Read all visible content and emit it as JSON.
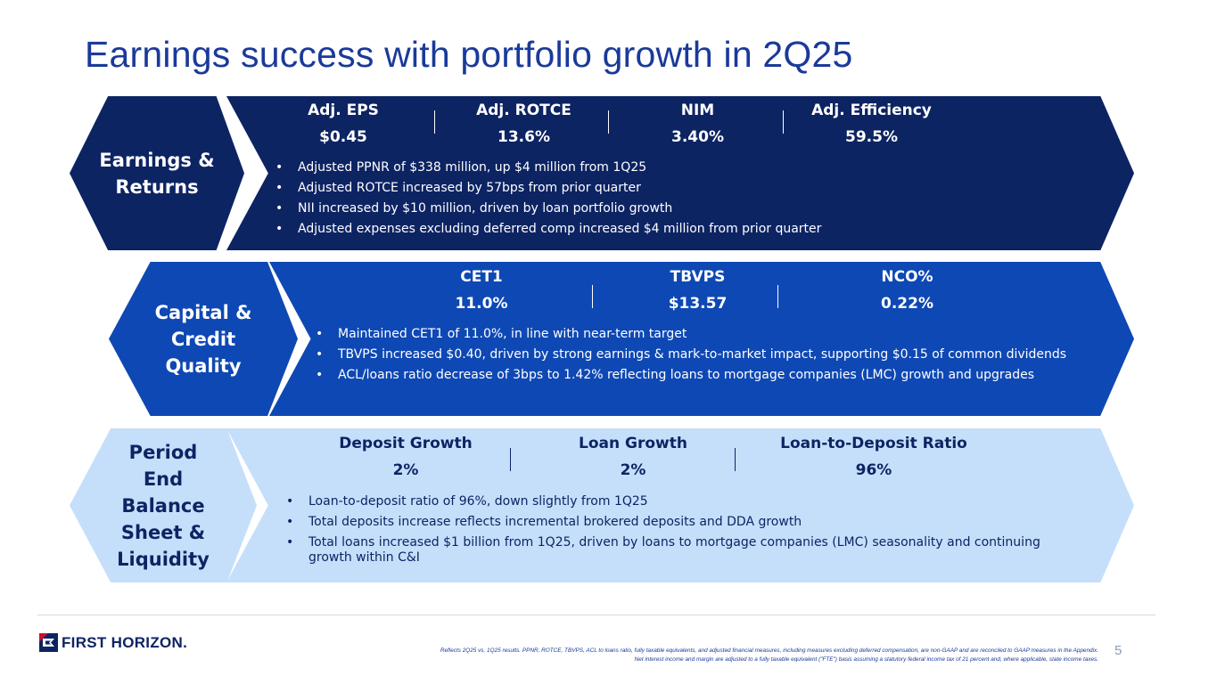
{
  "title": "Earnings success with portfolio growth in 2Q25",
  "row1": {
    "section": "Earnings & Returns",
    "metrics": [
      {
        "label": "Adj. EPS",
        "value": "$0.45"
      },
      {
        "label": "Adj. ROTCE",
        "value": "13.6%"
      },
      {
        "label": "NIM",
        "value": "3.40%"
      },
      {
        "label": "Adj. Efficiency",
        "value": "59.5%"
      }
    ],
    "bullets": [
      "Adjusted PPNR of $338 million, up $4 million from 1Q25",
      "Adjusted ROTCE increased by 57bps from prior quarter",
      "NII increased by $10 million, driven by loan portfolio growth",
      "Adjusted expenses excluding deferred comp increased $4 million from prior quarter"
    ]
  },
  "row2": {
    "section": "Capital & Credit Quality",
    "metrics": [
      {
        "label": "CET1",
        "value": "11.0%"
      },
      {
        "label": "TBVPS",
        "value": "$13.57"
      },
      {
        "label": "NCO%",
        "value": "0.22%"
      }
    ],
    "bullets": [
      "Maintained CET1 of 11.0%, in line with near-term target",
      "TBVPS increased $0.40, driven by strong earnings & mark-to-market impact, supporting $0.15 of common dividends",
      "ACL/loans ratio decrease of 3bps to 1.42% reflecting loans to mortgage companies (LMC) growth and upgrades"
    ]
  },
  "row3": {
    "section": "Period End Balance Sheet & Liquidity",
    "metrics": [
      {
        "label": "Deposit Growth",
        "value": "2%"
      },
      {
        "label": "Loan Growth",
        "value": "2%"
      },
      {
        "label": "Loan-to-Deposit Ratio",
        "value": "96%"
      }
    ],
    "bullets": [
      "Loan-to-deposit ratio of 96%, down slightly from 1Q25",
      "Total deposits increase reflects incremental brokered deposits and DDA growth",
      "Total loans increased $1 billion from 1Q25, driven by loans to mortgage companies (LMC) seasonality and continuing growth within C&I"
    ]
  },
  "logo": "FIRST HORIZON.",
  "footnote": {
    "line1": "Reflects 2Q25 vs. 1Q25 results. PPNR, ROTCE, TBVPS, ACL to loans ratio, fully taxable equivalents, and adjusted financial measures, including measures excluding deferred compensation, are non-GAAP and are reconciled to GAAP measures in the Appendix.",
    "line2": "Net interest income and margin are adjusted to a fully taxable equivalent (\"FTE\") basis assuming a statutory federal income tax of 21 percent and, where applicable, state income taxes."
  },
  "page_number": "5",
  "colors": {
    "navy": "#0d2463",
    "blue": "#0e48b4",
    "light_blue": "#c5dffb",
    "title": "#1a3a9a",
    "logo_red": "#c8102e"
  }
}
